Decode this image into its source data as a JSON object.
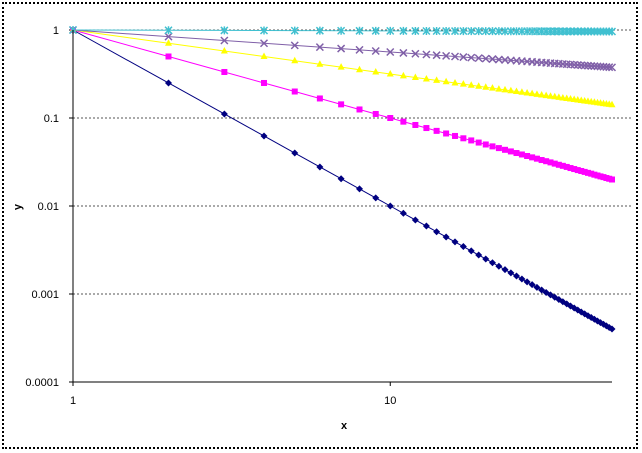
{
  "chart_data": {
    "type": "line",
    "title": "",
    "xlabel": "x",
    "ylabel": "y",
    "xscale": "log",
    "yscale": "log",
    "xlim": [
      1,
      50
    ],
    "ylim": [
      0.0001,
      1
    ],
    "x_ticks": [
      "1",
      "10"
    ],
    "y_ticks": [
      "0.0001",
      "0.001",
      "0.01",
      "0.1",
      "1"
    ],
    "grid": "horizontal dashed major gridlines",
    "legend": "none",
    "x": [
      1,
      2,
      3,
      4,
      5,
      6,
      7,
      8,
      9,
      10,
      11,
      12,
      13,
      14,
      15,
      16,
      17,
      18,
      19,
      20,
      21,
      22,
      23,
      24,
      25,
      26,
      27,
      28,
      29,
      30,
      31,
      32,
      33,
      34,
      35,
      36,
      37,
      38,
      39,
      40,
      41,
      42,
      43,
      44,
      45,
      46,
      47,
      48,
      49,
      50
    ],
    "series": [
      {
        "color": "#000080",
        "marker": "diamond",
        "values": [
          1,
          0.25,
          0.1111,
          0.0625,
          0.04,
          0.02778,
          0.02041,
          0.01563,
          0.01235,
          0.01,
          0.008264,
          0.006944,
          0.005917,
          0.005102,
          0.004444,
          0.003906,
          0.00346,
          0.003086,
          0.00277,
          0.0025,
          0.002268,
          0.002066,
          0.00189,
          0.001736,
          0.0016,
          0.001479,
          0.001372,
          0.001276,
          0.001189,
          0.001111,
          0.001041,
          0.0009766,
          0.0009183,
          0.0008651,
          0.0008163,
          0.0007716,
          0.0007305,
          0.0006925,
          0.0006575,
          0.000625,
          0.0005949,
          0.0005669,
          0.0005408,
          0.0005165,
          0.0004938,
          0.0004726,
          0.0004526,
          0.000434,
          0.0004165,
          0.0004
        ]
      },
      {
        "color": "#FF00FF",
        "marker": "square",
        "values": [
          1,
          0.5,
          0.3333,
          0.25,
          0.2,
          0.1667,
          0.1429,
          0.125,
          0.1111,
          0.1,
          0.0909,
          0.0833,
          0.0769,
          0.0714,
          0.0667,
          0.0625,
          0.0588,
          0.0556,
          0.0526,
          0.05,
          0.0476,
          0.0455,
          0.0435,
          0.0417,
          0.04,
          0.0385,
          0.037,
          0.0357,
          0.0345,
          0.0333,
          0.0323,
          0.0313,
          0.0303,
          0.0294,
          0.0286,
          0.0278,
          0.027,
          0.0263,
          0.0256,
          0.025,
          0.0244,
          0.0238,
          0.0233,
          0.0227,
          0.0222,
          0.0217,
          0.0213,
          0.0208,
          0.0204,
          0.02
        ]
      },
      {
        "color": "#FFFF00",
        "marker": "triangle",
        "values": [
          1,
          0.7071,
          0.5774,
          0.5,
          0.4472,
          0.4082,
          0.378,
          0.3536,
          0.3333,
          0.3162,
          0.3015,
          0.2887,
          0.2774,
          0.2673,
          0.2582,
          0.25,
          0.2425,
          0.2357,
          0.2294,
          0.2236,
          0.2182,
          0.2132,
          0.2085,
          0.2041,
          0.2,
          0.1961,
          0.1925,
          0.189,
          0.1857,
          0.1826,
          0.1796,
          0.1768,
          0.1741,
          0.1715,
          0.169,
          0.1667,
          0.1644,
          0.1622,
          0.1601,
          0.1581,
          0.1562,
          0.1543,
          0.1525,
          0.1508,
          0.1491,
          0.1474,
          0.1459,
          0.1443,
          0.1429,
          0.1414
        ]
      },
      {
        "color": "#8060A8",
        "marker": "x",
        "values": [
          1,
          0.8409,
          0.7598,
          0.7071,
          0.6687,
          0.6389,
          0.6148,
          0.5946,
          0.5774,
          0.5623,
          0.5491,
          0.5373,
          0.5267,
          0.517,
          0.5081,
          0.5,
          0.4924,
          0.4855,
          0.479,
          0.4729,
          0.4671,
          0.4617,
          0.4566,
          0.4518,
          0.4472,
          0.4428,
          0.4387,
          0.4347,
          0.431,
          0.4273,
          0.4238,
          0.4204,
          0.4172,
          0.4141,
          0.4111,
          0.4082,
          0.4055,
          0.4027,
          0.4001,
          0.3976,
          0.3952,
          0.3928,
          0.3905,
          0.3883,
          0.3861,
          0.384,
          0.382,
          0.3799,
          0.378,
          0.3761
        ]
      },
      {
        "color": "#40C0D0",
        "marker": "star",
        "values": [
          1,
          0.9931,
          0.9891,
          0.9862,
          0.984,
          0.9822,
          0.9807,
          0.9794,
          0.9783,
          0.9772,
          0.9763,
          0.9755,
          0.9747,
          0.974,
          0.9733,
          0.9727,
          0.9721,
          0.9715,
          0.971,
          0.9705,
          0.97,
          0.9695,
          0.9691,
          0.9687,
          0.9683,
          0.9679,
          0.9676,
          0.9672,
          0.9669,
          0.9666,
          0.9662,
          0.9659,
          0.9656,
          0.9654,
          0.9651,
          0.9648,
          0.9645,
          0.9643,
          0.964,
          0.9638,
          0.9636,
          0.9633,
          0.9631,
          0.9629,
          0.9627,
          0.9624,
          0.9622,
          0.962,
          0.9618,
          0.9616
        ]
      }
    ]
  }
}
